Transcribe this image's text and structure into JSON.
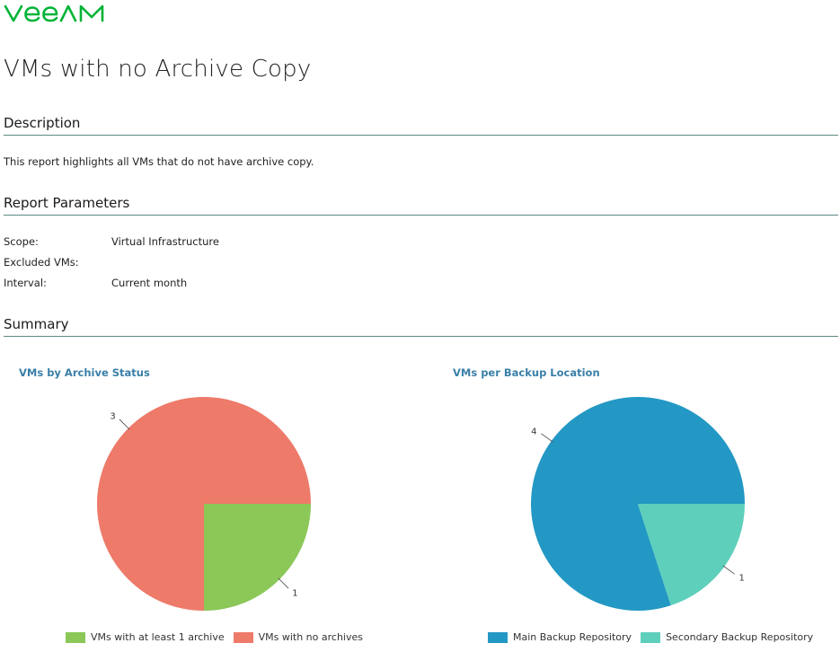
{
  "logo": {
    "text": "VEEAM",
    "color": "#00b336"
  },
  "page": {
    "title": "VMs with no Archive Copy"
  },
  "description": {
    "header": "Description",
    "text": "This report highlights all VMs that do not have archive copy."
  },
  "parameters": {
    "header": "Report Parameters",
    "rows": [
      {
        "label": "Scope:",
        "value": "Virtual Infrastructure"
      },
      {
        "label": "Excluded VMs:",
        "value": ""
      },
      {
        "label": "Interval:",
        "value": "Current month"
      }
    ]
  },
  "summary": {
    "header": "Summary"
  },
  "chart_data": [
    {
      "type": "pie",
      "title": "VMs by Archive Status",
      "slices": [
        {
          "label": "VMs with at least 1 archive",
          "value": 1,
          "color": "#8bc858"
        },
        {
          "label": "VMs with no archives",
          "value": 3,
          "color": "#ee7a6a"
        }
      ],
      "data_labels": [
        "1",
        "3"
      ],
      "legend_position": "bottom"
    },
    {
      "type": "pie",
      "title": "VMs per Backup Location",
      "slices": [
        {
          "label": "Main Backup Repository",
          "value": 4,
          "color": "#2398c4"
        },
        {
          "label": "Secondary Backup Repository",
          "value": 1,
          "color": "#5ecfbb"
        }
      ],
      "data_labels": [
        "4",
        "1"
      ],
      "legend_position": "bottom"
    }
  ]
}
